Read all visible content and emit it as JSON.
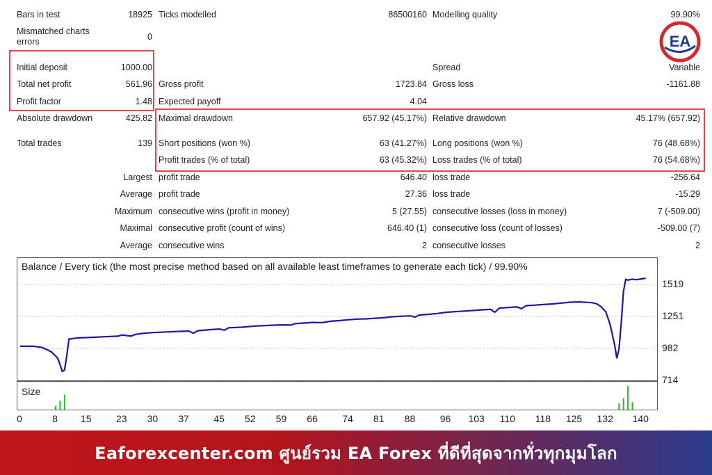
{
  "report": {
    "rows": [
      {
        "c1": "Bars in test",
        "c2": "18925",
        "c3": "Ticks modelled",
        "c4": "86500160",
        "c5": "Modelling quality",
        "c6": "99.90%"
      },
      {
        "c1": "Mismatched charts errors",
        "c2": "0",
        "c3": "",
        "c4": "",
        "c5": "",
        "c6": ""
      },
      {
        "c1": "Initial deposit",
        "c2": "1000.00",
        "c3": "",
        "c4": "",
        "c5": "Spread",
        "c6": "Variable"
      },
      {
        "c1": "Total net profit",
        "c2": "561.96",
        "c3": "Gross profit",
        "c4": "1723.84",
        "c5": "Gross loss",
        "c6": "-1161.88"
      },
      {
        "c1": "Profit factor",
        "c2": "1.48",
        "c3": "Expected payoff",
        "c4": "4.04",
        "c5": "",
        "c6": ""
      },
      {
        "c1": "Absolute drawdown",
        "c2": "425.82",
        "c3": "Maximal drawdown",
        "c4": "657.92 (45.17%)",
        "c5": "Relative drawdown",
        "c6": "45.17% (657.92)"
      },
      {
        "c1": "Total trades",
        "c2": "139",
        "c3": "Short positions (won %)",
        "c4": "63 (41.27%)",
        "c5": "Long positions (won %)",
        "c6": "76 (48.68%)"
      },
      {
        "c1": "",
        "c2": "",
        "c3": "Profit trades (% of total)",
        "c4": "63 (45.32%)",
        "c5": "Loss trades (% of total)",
        "c6": "76 (54.68%)"
      },
      {
        "c1": "",
        "c2": "Largest",
        "c3": "profit trade",
        "c4": "646.40",
        "c5": "loss trade",
        "c6": "-256.64"
      },
      {
        "c1": "",
        "c2": "Average",
        "c3": "profit trade",
        "c4": "27.36",
        "c5": "loss trade",
        "c6": "-15.29"
      },
      {
        "c1": "",
        "c2": "Maximum",
        "c3": "consecutive wins (profit in money)",
        "c4": "5 (27.55)",
        "c5": "consecutive losses (loss in money)",
        "c6": "7 (-509.00)"
      },
      {
        "c1": "",
        "c2": "Maximal",
        "c3": "consecutive profit (count of wins)",
        "c4": "646.40 (1)",
        "c5": "consecutive loss (count of losses)",
        "c6": "-509.00 (7)"
      },
      {
        "c1": "",
        "c2": "Average",
        "c3": "consecutive wins",
        "c4": "2",
        "c5": "consecutive losses",
        "c6": "2"
      }
    ]
  },
  "logo": {
    "text": "EA",
    "ring_color": "#d42a2f",
    "text_color": "#1f3a8a"
  },
  "highlight_color": "#e8454b",
  "banner": {
    "text": "Eaforexcenter.com ศูนย์รวม EA Forex ที่ดีที่สุดจากทั่วทุกมุมโลก"
  },
  "chart_data": {
    "type": "line",
    "title": "Balance / Every tick (the most precise method based on all available least timeframes to generate each tick) / 99.90%",
    "line_color": "#1a1aa0",
    "size_bar_color": "#22bb22",
    "size_label": "Size",
    "ylim": [
      714,
      1600
    ],
    "yticks": [
      1519,
      1251,
      982,
      714
    ],
    "xlim": [
      0,
      142
    ],
    "xticks": [
      0,
      8,
      15,
      23,
      30,
      37,
      45,
      52,
      59,
      66,
      74,
      81,
      88,
      96,
      103,
      110,
      118,
      125,
      132,
      140
    ],
    "series": [
      {
        "values": [
          [
            0,
            1000
          ],
          [
            3,
            1000
          ],
          [
            5,
            990
          ],
          [
            7,
            955
          ],
          [
            8.5,
            900
          ],
          [
            9.5,
            790
          ],
          [
            10,
            800
          ],
          [
            10.5,
            920
          ],
          [
            11,
            1060
          ],
          [
            13,
            1070
          ],
          [
            16,
            1075
          ],
          [
            19,
            1080
          ],
          [
            22,
            1085
          ],
          [
            23,
            1095
          ],
          [
            24,
            1090
          ],
          [
            25,
            1085
          ],
          [
            26,
            1100
          ],
          [
            28,
            1110
          ],
          [
            30,
            1115
          ],
          [
            33,
            1120
          ],
          [
            36,
            1125
          ],
          [
            38,
            1128
          ],
          [
            39,
            1110
          ],
          [
            40,
            1130
          ],
          [
            43,
            1140
          ],
          [
            45,
            1145
          ],
          [
            46,
            1135
          ],
          [
            47,
            1155
          ],
          [
            50,
            1160
          ],
          [
            53,
            1170
          ],
          [
            56,
            1175
          ],
          [
            59,
            1180
          ],
          [
            61,
            1178
          ],
          [
            62,
            1190
          ],
          [
            64,
            1195
          ],
          [
            66,
            1200
          ],
          [
            68,
            1198
          ],
          [
            70,
            1210
          ],
          [
            72,
            1215
          ],
          [
            74,
            1222
          ],
          [
            76,
            1228
          ],
          [
            78,
            1230
          ],
          [
            80,
            1235
          ],
          [
            82,
            1240
          ],
          [
            84,
            1248
          ],
          [
            86,
            1252
          ],
          [
            88,
            1255
          ],
          [
            89,
            1245
          ],
          [
            90,
            1262
          ],
          [
            92,
            1268
          ],
          [
            94,
            1275
          ],
          [
            96,
            1285
          ],
          [
            98,
            1290
          ],
          [
            100,
            1295
          ],
          [
            102,
            1300
          ],
          [
            104,
            1305
          ],
          [
            106,
            1310
          ],
          [
            107,
            1285
          ],
          [
            108,
            1320
          ],
          [
            110,
            1325
          ],
          [
            112,
            1330
          ],
          [
            113,
            1315
          ],
          [
            114,
            1340
          ],
          [
            116,
            1345
          ],
          [
            118,
            1350
          ],
          [
            120,
            1355
          ],
          [
            122,
            1362
          ],
          [
            124,
            1370
          ],
          [
            126,
            1372
          ],
          [
            128,
            1368
          ],
          [
            129,
            1365
          ],
          [
            130,
            1355
          ],
          [
            131,
            1330
          ],
          [
            132,
            1290
          ],
          [
            133,
            1180
          ],
          [
            134,
            1010
          ],
          [
            134.5,
            900
          ],
          [
            135,
            980
          ],
          [
            135.5,
            1200
          ],
          [
            136,
            1460
          ],
          [
            136.5,
            1560
          ],
          [
            137,
            1555
          ],
          [
            138,
            1562
          ],
          [
            139,
            1558
          ],
          [
            140,
            1565
          ],
          [
            141,
            1570
          ]
        ]
      }
    ],
    "size_bars": [
      {
        "x": 8,
        "v": 0.15
      },
      {
        "x": 9,
        "v": 0.35
      },
      {
        "x": 10,
        "v": 0.6
      },
      {
        "x": 135,
        "v": 0.25
      },
      {
        "x": 136,
        "v": 0.45
      },
      {
        "x": 137,
        "v": 0.95
      },
      {
        "x": 138,
        "v": 0.3
      }
    ]
  }
}
